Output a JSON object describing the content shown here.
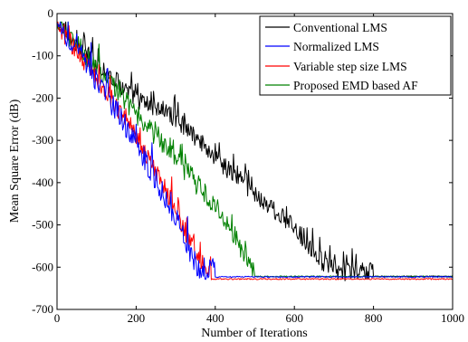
{
  "chart_data": {
    "type": "line",
    "xlabel": "Number of Iterations",
    "ylabel": "Mean Square Error (dB)",
    "xlim": [
      0,
      1000
    ],
    "ylim": [
      -700,
      0
    ],
    "xticks": [
      0,
      200,
      400,
      600,
      800,
      1000
    ],
    "yticks": [
      0,
      -100,
      -200,
      -300,
      -400,
      -500,
      -600,
      -700
    ],
    "grid": false,
    "legend_position": "top-right",
    "series": [
      {
        "name": "Conventional LMS",
        "color": "#000000",
        "noise": 22,
        "x": [
          0,
          20,
          100,
          200,
          300,
          400,
          500,
          600,
          680,
          720,
          800,
          1000
        ],
        "y": [
          -30,
          -60,
          -130,
          -215,
          -260,
          -355,
          -440,
          -520,
          -610,
          -625,
          -622,
          -622
        ]
      },
      {
        "name": "Normalized LMS",
        "color": "#0000ff",
        "noise": 28,
        "x": [
          0,
          20,
          100,
          200,
          300,
          350,
          380,
          400,
          1000
        ],
        "y": [
          -30,
          -65,
          -175,
          -320,
          -500,
          -610,
          -625,
          -623,
          -623
        ]
      },
      {
        "name": "Variable step size LMS",
        "color": "#ff0000",
        "noise": 24,
        "x": [
          0,
          20,
          100,
          200,
          300,
          360,
          390,
          1000
        ],
        "y": [
          -30,
          -65,
          -165,
          -300,
          -480,
          -600,
          -628,
          -628
        ]
      },
      {
        "name": "Proposed EMD based AF",
        "color": "#008000",
        "noise": 26,
        "x": [
          0,
          20,
          100,
          200,
          300,
          400,
          460,
          500,
          1000
        ],
        "y": [
          -30,
          -60,
          -140,
          -250,
          -360,
          -470,
          -560,
          -620,
          -622
        ]
      }
    ]
  }
}
